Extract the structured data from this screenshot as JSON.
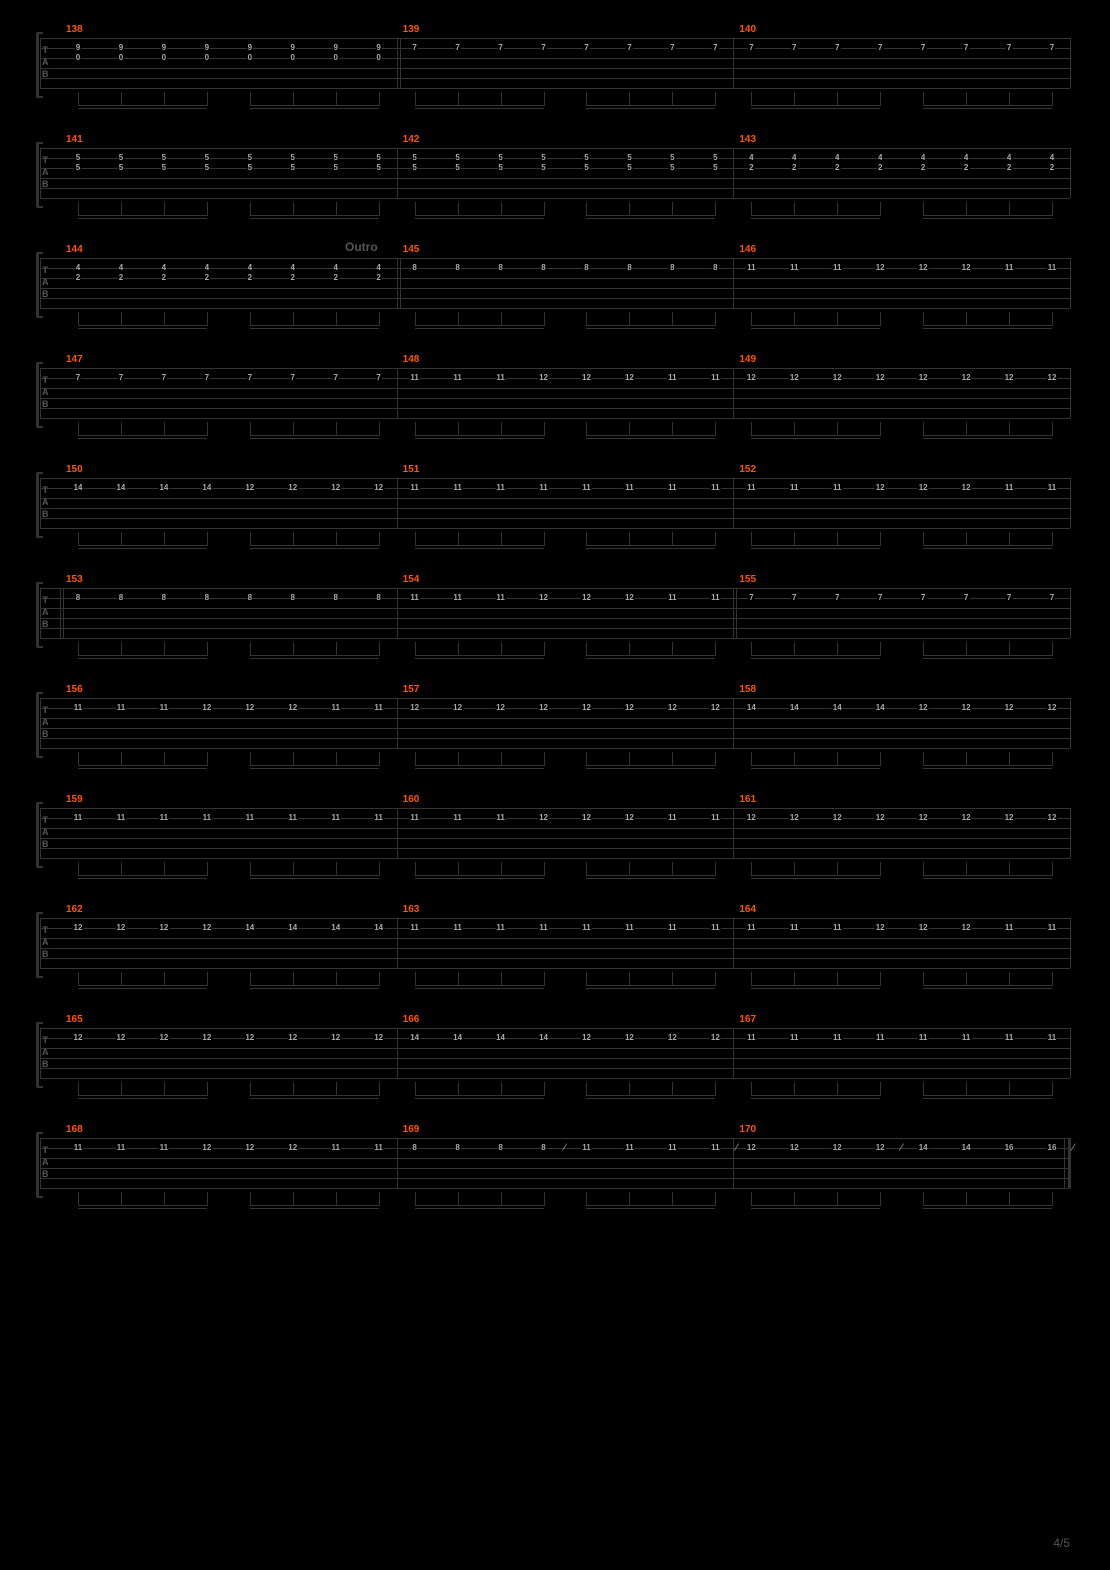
{
  "page_number": "4/5",
  "staff_line_color": "#333333",
  "measure_label_color": "#ff5500",
  "note_color": "#aaaaaa",
  "background_color": "#000000",
  "tab_label": [
    "T",
    "A",
    "B"
  ],
  "section_label": "Outro",
  "section_label_row": 2,
  "systems": [
    {
      "measures": [
        {
          "num": 138,
          "strings": [
            0,
            1
          ],
          "frets": [
            [
              9,
              9,
              9,
              9,
              9,
              9,
              9,
              9
            ],
            [
              0,
              0,
              0,
              0,
              0,
              0,
              0,
              0
            ]
          ],
          "double_bar_after": true
        },
        {
          "num": 139,
          "strings": [
            0
          ],
          "frets": [
            [
              7,
              7,
              7,
              7,
              7,
              7,
              7,
              7
            ]
          ]
        },
        {
          "num": 140,
          "strings": [
            0
          ],
          "frets": [
            [
              7,
              7,
              7,
              7,
              7,
              7,
              7,
              7
            ]
          ]
        }
      ]
    },
    {
      "measures": [
        {
          "num": 141,
          "strings": [
            0,
            1
          ],
          "frets": [
            [
              5,
              5,
              5,
              5,
              5,
              5,
              5,
              5
            ],
            [
              5,
              5,
              5,
              5,
              5,
              5,
              5,
              5
            ]
          ]
        },
        {
          "num": 142,
          "strings": [
            0,
            1
          ],
          "frets": [
            [
              5,
              5,
              5,
              5,
              5,
              5,
              5,
              5
            ],
            [
              5,
              5,
              5,
              5,
              5,
              5,
              5,
              5
            ]
          ]
        },
        {
          "num": 143,
          "strings": [
            0,
            1
          ],
          "frets": [
            [
              4,
              4,
              4,
              4,
              4,
              4,
              4,
              4
            ],
            [
              2,
              2,
              2,
              2,
              2,
              2,
              2,
              2
            ]
          ]
        }
      ]
    },
    {
      "measures": [
        {
          "num": 144,
          "strings": [
            0,
            1
          ],
          "frets": [
            [
              4,
              4,
              4,
              4,
              4,
              4,
              4,
              4
            ],
            [
              2,
              2,
              2,
              2,
              2,
              2,
              2,
              2
            ]
          ],
          "double_bar_after": true
        },
        {
          "num": 145,
          "strings": [
            0
          ],
          "frets": [
            [
              8,
              8,
              8,
              8,
              8,
              8,
              8,
              8
            ]
          ]
        },
        {
          "num": 146,
          "strings": [
            0
          ],
          "frets": [
            [
              11,
              11,
              11,
              12,
              12,
              12,
              11,
              11
            ]
          ]
        }
      ]
    },
    {
      "measures": [
        {
          "num": 147,
          "strings": [
            0
          ],
          "frets": [
            [
              7,
              7,
              7,
              7,
              7,
              7,
              7,
              7
            ]
          ]
        },
        {
          "num": 148,
          "strings": [
            0
          ],
          "frets": [
            [
              11,
              11,
              11,
              12,
              12,
              12,
              11,
              11
            ]
          ]
        },
        {
          "num": 149,
          "strings": [
            0
          ],
          "frets": [
            [
              12,
              12,
              12,
              12,
              12,
              12,
              12,
              12
            ]
          ]
        }
      ]
    },
    {
      "measures": [
        {
          "num": 150,
          "strings": [
            0
          ],
          "frets": [
            [
              14,
              14,
              14,
              14,
              12,
              12,
              12,
              12
            ]
          ]
        },
        {
          "num": 151,
          "strings": [
            0
          ],
          "frets": [
            [
              11,
              11,
              11,
              11,
              11,
              11,
              11,
              11
            ]
          ]
        },
        {
          "num": 152,
          "strings": [
            0
          ],
          "frets": [
            [
              11,
              11,
              11,
              12,
              12,
              12,
              11,
              11
            ]
          ]
        }
      ]
    },
    {
      "measures": [
        {
          "num": 153,
          "strings": [
            0
          ],
          "frets": [
            [
              8,
              8,
              8,
              8,
              8,
              8,
              8,
              8
            ]
          ],
          "double_bar_before": true
        },
        {
          "num": 154,
          "strings": [
            0
          ],
          "frets": [
            [
              11,
              11,
              11,
              12,
              12,
              12,
              11,
              11
            ]
          ],
          "double_bar_after": true
        },
        {
          "num": 155,
          "strings": [
            0
          ],
          "frets": [
            [
              7,
              7,
              7,
              7,
              7,
              7,
              7,
              7
            ]
          ]
        }
      ]
    },
    {
      "measures": [
        {
          "num": 156,
          "strings": [
            0
          ],
          "frets": [
            [
              11,
              11,
              11,
              12,
              12,
              12,
              11,
              11
            ]
          ]
        },
        {
          "num": 157,
          "strings": [
            0
          ],
          "frets": [
            [
              12,
              12,
              12,
              12,
              12,
              12,
              12,
              12
            ]
          ]
        },
        {
          "num": 158,
          "strings": [
            0
          ],
          "frets": [
            [
              14,
              14,
              14,
              14,
              12,
              12,
              12,
              12
            ]
          ]
        }
      ]
    },
    {
      "measures": [
        {
          "num": 159,
          "strings": [
            0
          ],
          "frets": [
            [
              11,
              11,
              11,
              11,
              11,
              11,
              11,
              11
            ]
          ]
        },
        {
          "num": 160,
          "strings": [
            0
          ],
          "frets": [
            [
              11,
              11,
              11,
              12,
              12,
              12,
              11,
              11
            ]
          ]
        },
        {
          "num": 161,
          "strings": [
            0
          ],
          "frets": [
            [
              12,
              12,
              12,
              12,
              12,
              12,
              12,
              12
            ]
          ]
        }
      ]
    },
    {
      "measures": [
        {
          "num": 162,
          "strings": [
            0
          ],
          "frets": [
            [
              12,
              12,
              12,
              12,
              14,
              14,
              14,
              14
            ]
          ]
        },
        {
          "num": 163,
          "strings": [
            0
          ],
          "frets": [
            [
              11,
              11,
              11,
              11,
              11,
              11,
              11,
              11
            ]
          ]
        },
        {
          "num": 164,
          "strings": [
            0
          ],
          "frets": [
            [
              11,
              11,
              11,
              12,
              12,
              12,
              11,
              11
            ]
          ]
        }
      ]
    },
    {
      "measures": [
        {
          "num": 165,
          "strings": [
            0
          ],
          "frets": [
            [
              12,
              12,
              12,
              12,
              12,
              12,
              12,
              12
            ]
          ]
        },
        {
          "num": 166,
          "strings": [
            0
          ],
          "frets": [
            [
              14,
              14,
              14,
              14,
              12,
              12,
              12,
              12
            ]
          ]
        },
        {
          "num": 167,
          "strings": [
            0
          ],
          "frets": [
            [
              11,
              11,
              11,
              11,
              11,
              11,
              11,
              11
            ]
          ]
        }
      ]
    },
    {
      "measures": [
        {
          "num": 168,
          "strings": [
            0
          ],
          "frets": [
            [
              11,
              11,
              11,
              12,
              12,
              12,
              11,
              11
            ]
          ]
        },
        {
          "num": 169,
          "strings": [
            0
          ],
          "frets": [
            [
              8,
              8,
              8,
              8,
              11,
              11,
              11,
              11
            ]
          ],
          "slide_after_4": true,
          "slide_after_8": true
        },
        {
          "num": 170,
          "strings": [
            0
          ],
          "frets": [
            [
              12,
              12,
              12,
              12,
              14,
              14,
              16,
              16
            ]
          ],
          "slide_after_4": true,
          "slide_after_8": true,
          "end_bar": true
        }
      ]
    }
  ]
}
